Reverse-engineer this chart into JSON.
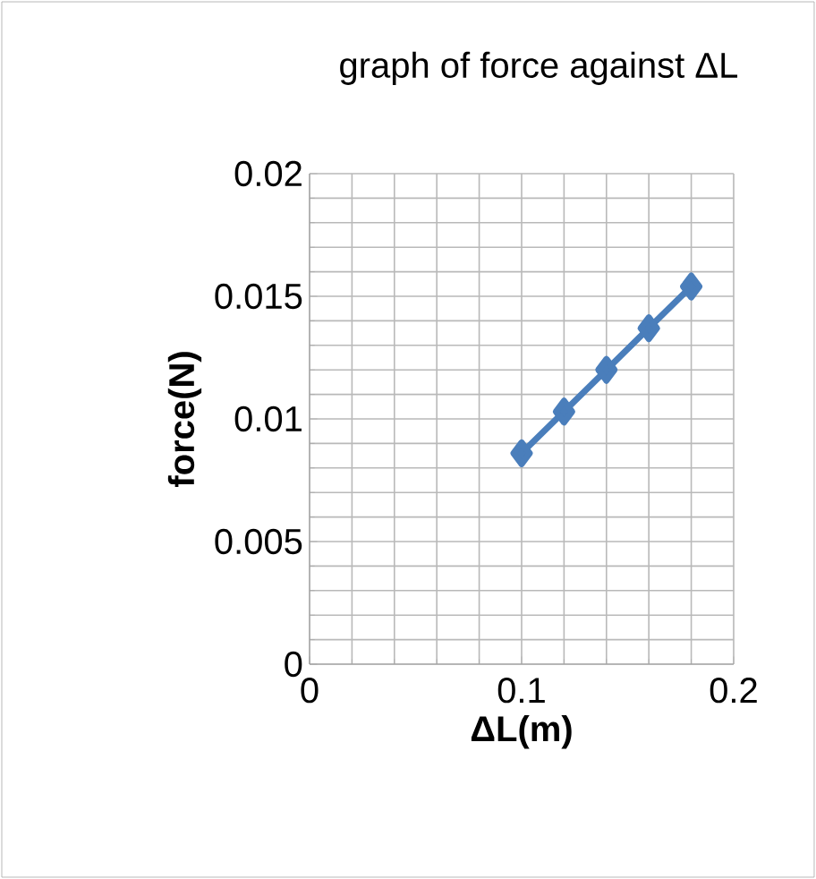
{
  "chart_data": {
    "type": "line",
    "title": "graph of force against ΔL",
    "xlabel": "ΔL(m)",
    "ylabel": "force(N)",
    "x": [
      0.1,
      0.12,
      0.14,
      0.16,
      0.18
    ],
    "series": [
      {
        "color": "#4a7ebb",
        "values": [
          0.0086,
          0.0103,
          0.012,
          0.0137,
          0.0154
        ]
      }
    ],
    "xlim": [
      0,
      0.2
    ],
    "xticks": [
      0,
      0.1,
      0.2
    ],
    "ylim": [
      0,
      0.02
    ],
    "yticks": [
      0,
      0.005,
      0.01,
      0.015,
      0.02
    ],
    "grid": true,
    "marker": "diamond",
    "line_style": "solid"
  }
}
